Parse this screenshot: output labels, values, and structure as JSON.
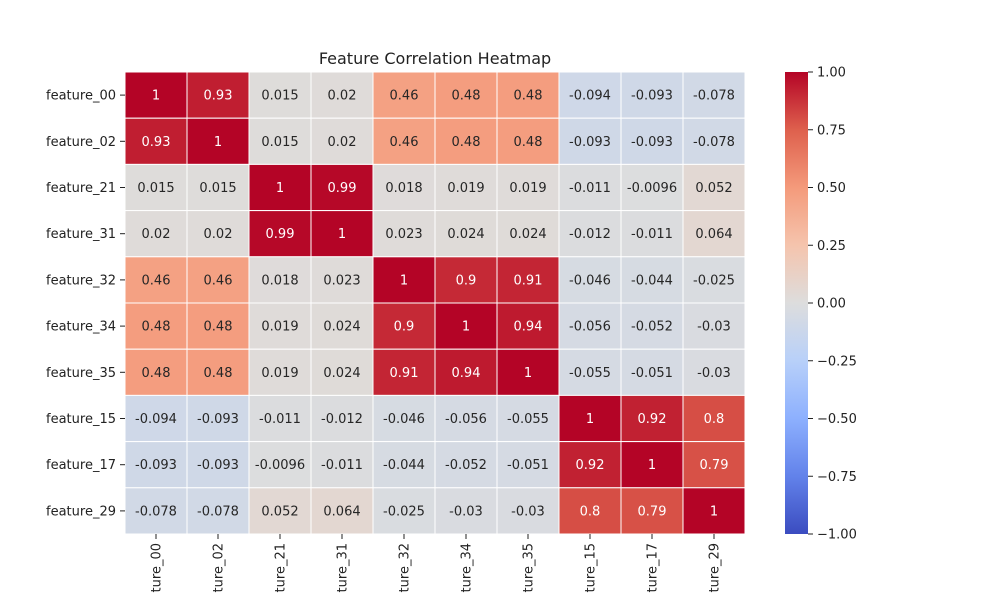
{
  "chart_data": {
    "type": "heatmap",
    "title": "Feature Correlation Heatmap",
    "row_labels": [
      "feature_00",
      "feature_02",
      "feature_21",
      "feature_31",
      "feature_32",
      "feature_34",
      "feature_35",
      "feature_15",
      "feature_17",
      "feature_29"
    ],
    "column_labels": [
      "ture_00",
      "ture_02",
      "ture_21",
      "ture_31",
      "ture_32",
      "ture_34",
      "ture_35",
      "ture_15",
      "ture_17",
      "ture_29"
    ],
    "values": [
      [
        1,
        0.93,
        0.015,
        0.02,
        0.46,
        0.48,
        0.48,
        -0.094,
        -0.093,
        -0.078
      ],
      [
        0.93,
        1,
        0.015,
        0.02,
        0.46,
        0.48,
        0.48,
        -0.093,
        -0.093,
        -0.078
      ],
      [
        0.015,
        0.015,
        1,
        0.99,
        0.018,
        0.019,
        0.019,
        -0.011,
        -0.0096,
        0.052
      ],
      [
        0.02,
        0.02,
        0.99,
        1,
        0.023,
        0.024,
        0.024,
        -0.012,
        -0.011,
        0.064
      ],
      [
        0.46,
        0.46,
        0.018,
        0.023,
        1,
        0.9,
        0.91,
        -0.046,
        -0.044,
        -0.025
      ],
      [
        0.48,
        0.48,
        0.019,
        0.024,
        0.9,
        1,
        0.94,
        -0.056,
        -0.052,
        -0.03
      ],
      [
        0.48,
        0.48,
        0.019,
        0.024,
        0.91,
        0.94,
        1,
        -0.055,
        -0.051,
        -0.03
      ],
      [
        -0.094,
        -0.093,
        -0.011,
        -0.012,
        -0.046,
        -0.056,
        -0.055,
        1,
        0.92,
        0.8
      ],
      [
        -0.093,
        -0.093,
        -0.0096,
        -0.011,
        -0.044,
        -0.052,
        -0.051,
        0.92,
        1,
        0.79
      ],
      [
        -0.078,
        -0.078,
        0.052,
        0.064,
        -0.025,
        -0.03,
        -0.03,
        0.8,
        0.79,
        1
      ]
    ],
    "colormap": "coolwarm",
    "vmin": -1,
    "vmax": 1,
    "colorbar_ticks": [
      {
        "value": 1.0,
        "label": "1.00"
      },
      {
        "value": 0.75,
        "label": "0.75"
      },
      {
        "value": 0.5,
        "label": "0.50"
      },
      {
        "value": 0.25,
        "label": "0.25"
      },
      {
        "value": 0.0,
        "label": "0.00"
      },
      {
        "value": -0.25,
        "label": "−0.25"
      },
      {
        "value": -0.5,
        "label": "−0.50"
      },
      {
        "value": -0.75,
        "label": "−0.75"
      },
      {
        "value": -1.0,
        "label": "−1.00"
      }
    ],
    "annotations": true,
    "grid_lines": "white"
  }
}
